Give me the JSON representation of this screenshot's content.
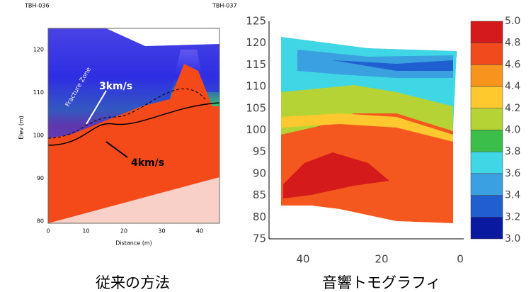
{
  "left_panel": {
    "well_left": "TBH-036",
    "well_right": "TBH-037",
    "y_axis_label": "Elev (m)",
    "x_axis_label": "Distance (m)",
    "yticks": [
      "120",
      "110",
      "100",
      "90",
      "80"
    ],
    "xticks": [
      "0",
      "10",
      "20",
      "30",
      "40"
    ],
    "annotations": [
      "Fracture Zone",
      "3km/s",
      "4km/s"
    ],
    "caption": "従来の方法"
  },
  "right_panel": {
    "yticks": [
      "125",
      "120",
      "115",
      "110",
      "105",
      "100",
      "95",
      "90",
      "85",
      "80",
      "75"
    ],
    "xticks": [
      "40",
      "20",
      "0"
    ],
    "colorbar_ticks": [
      "5.0",
      "4.8",
      "4.6",
      "4.4",
      "4.2",
      "4.0",
      "3.8",
      "3.6",
      "3.4",
      "3.2",
      "3.0"
    ],
    "caption": "音響トモグラフィ"
  }
}
